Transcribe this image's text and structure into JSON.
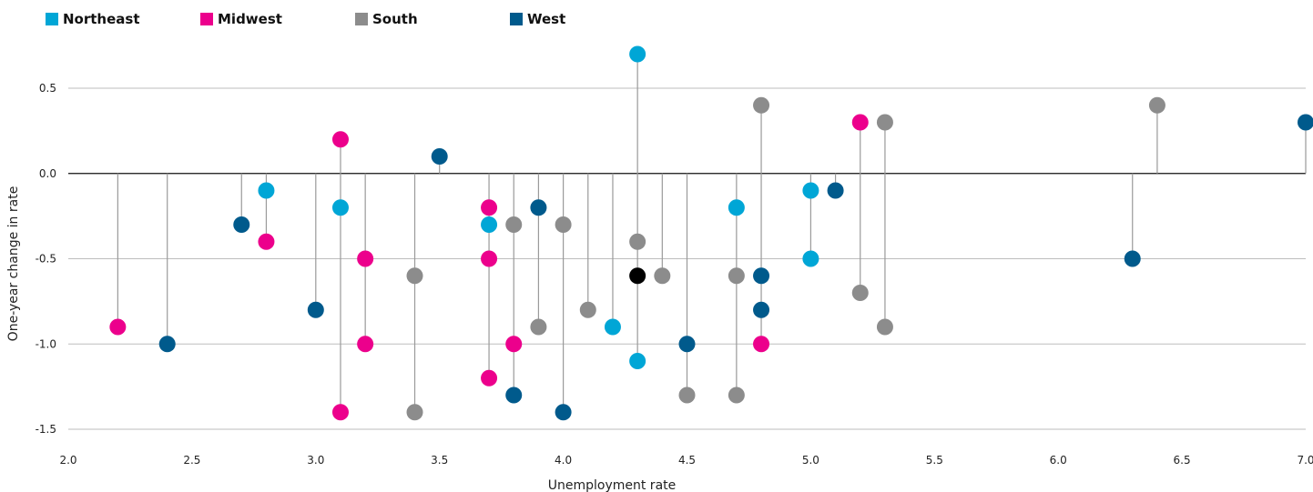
{
  "chart_data": {
    "type": "scatter",
    "title": "",
    "xlabel": "Unemployment rate",
    "ylabel": "One-year change in rate",
    "xlim": [
      2.0,
      7.0
    ],
    "ylim": [
      -1.5,
      0.5
    ],
    "x_ticks": [
      "2.0",
      "2.5",
      "3.0",
      "3.5",
      "4.0",
      "4.5",
      "5.0",
      "5.5",
      "6.0",
      "6.5",
      "7.0"
    ],
    "y_ticks": [
      "0.5",
      "0.0",
      "-0.5",
      "-1.0",
      "-1.5"
    ],
    "grid": "horizontal",
    "legend_position": "top-left",
    "stems_to_zero": true,
    "series": [
      {
        "name": "Northeast",
        "color": "#00A6D6",
        "points": [
          [
            2.8,
            -0.1
          ],
          [
            3.1,
            -0.2
          ],
          [
            3.7,
            -0.3
          ],
          [
            4.2,
            -0.9
          ],
          [
            4.3,
            0.7
          ],
          [
            4.3,
            -1.1
          ],
          [
            4.7,
            -0.2
          ],
          [
            5.0,
            -0.1
          ],
          [
            5.0,
            -0.5
          ]
        ]
      },
      {
        "name": "Midwest",
        "color": "#EC008C",
        "points": [
          [
            2.2,
            -0.9
          ],
          [
            2.8,
            -0.4
          ],
          [
            3.1,
            0.2
          ],
          [
            3.1,
            -1.4
          ],
          [
            3.2,
            -0.5
          ],
          [
            3.2,
            -1.0
          ],
          [
            3.7,
            -0.2
          ],
          [
            3.7,
            -0.5
          ],
          [
            3.7,
            -1.2
          ],
          [
            3.8,
            -1.0
          ],
          [
            4.8,
            -1.0
          ],
          [
            5.2,
            0.3
          ]
        ]
      },
      {
        "name": "South",
        "color": "#8C8C8C",
        "points": [
          [
            3.4,
            -0.6
          ],
          [
            3.4,
            -1.4
          ],
          [
            3.8,
            -0.3
          ],
          [
            3.9,
            -0.9
          ],
          [
            4.0,
            -0.3
          ],
          [
            4.1,
            -0.8
          ],
          [
            4.3,
            -0.4
          ],
          [
            4.4,
            -0.6
          ],
          [
            4.5,
            -1.3
          ],
          [
            4.7,
            -0.6
          ],
          [
            4.7,
            -1.3
          ],
          [
            4.8,
            0.4
          ],
          [
            5.2,
            -0.7
          ],
          [
            5.3,
            0.3
          ],
          [
            5.3,
            -0.9
          ],
          [
            6.4,
            0.4
          ]
        ]
      },
      {
        "name": "West",
        "color": "#005A8C",
        "points": [
          [
            2.4,
            -1.0
          ],
          [
            2.7,
            -0.3
          ],
          [
            3.0,
            -0.8
          ],
          [
            3.5,
            0.1
          ],
          [
            3.8,
            -1.3
          ],
          [
            3.9,
            -0.2
          ],
          [
            4.0,
            -1.4
          ],
          [
            4.5,
            -1.0
          ],
          [
            4.8,
            -0.6
          ],
          [
            4.8,
            -0.8
          ],
          [
            5.1,
            -0.1
          ],
          [
            6.3,
            -0.5
          ],
          [
            7.0,
            0.3
          ]
        ]
      },
      {
        "color": "#000000",
        "points": [
          [
            4.3,
            -0.6
          ]
        ]
      }
    ]
  }
}
